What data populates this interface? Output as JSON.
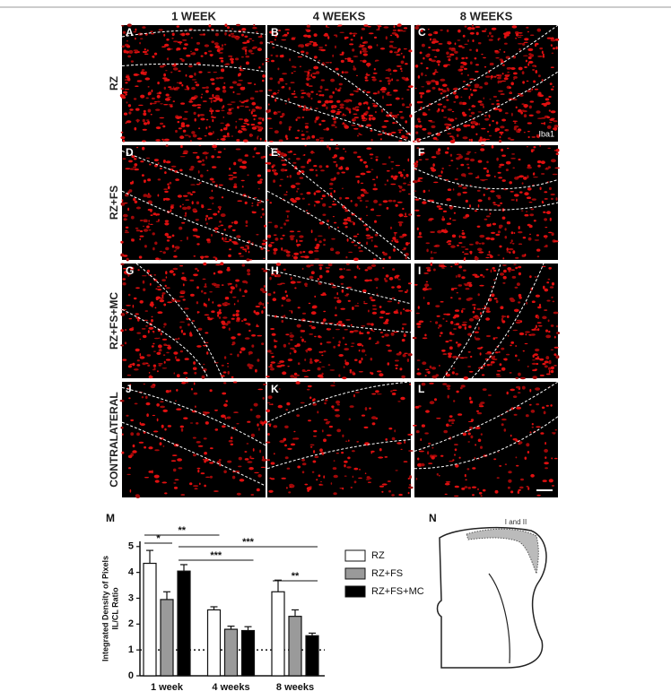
{
  "columns": [
    "1 WEEK",
    "4 WEEKS",
    "8 WEEKS"
  ],
  "rows": [
    "RZ",
    "RZ+FS",
    "RZ+FS+MC",
    "CONTRALATERAL"
  ],
  "panels": [
    "A",
    "B",
    "C",
    "D",
    "E",
    "F",
    "G",
    "H",
    "I",
    "J",
    "K",
    "L"
  ],
  "stain_label": "Iba1",
  "chart_data": {
    "type": "bar",
    "panel_label": "M",
    "ylabel": [
      "Integrated Density of Pixels",
      "IL/CL Ratio"
    ],
    "categories": [
      "1 week",
      "4 weeks",
      "8 weeks"
    ],
    "series": [
      {
        "name": "RZ",
        "color": "#ffffff",
        "values": [
          4.35,
          2.55,
          3.25
        ],
        "errors": [
          0.5,
          0.12,
          0.45
        ]
      },
      {
        "name": "RZ+FS",
        "color": "#9a9a9a",
        "values": [
          2.95,
          1.8,
          2.3
        ],
        "errors": [
          0.3,
          0.12,
          0.25
        ]
      },
      {
        "name": "RZ+FS+MC",
        "color": "#000000",
        "values": [
          4.05,
          1.75,
          1.55
        ],
        "errors": [
          0.25,
          0.15,
          0.1
        ]
      }
    ],
    "ylim": [
      0,
      5.2
    ],
    "yticks": [
      0,
      1,
      2,
      3,
      4,
      5
    ],
    "reference_line": 1,
    "annotations": [
      "*",
      "**",
      "***",
      "***",
      "**"
    ]
  },
  "diagram": {
    "panel_label": "N",
    "region_label": "I and II"
  }
}
